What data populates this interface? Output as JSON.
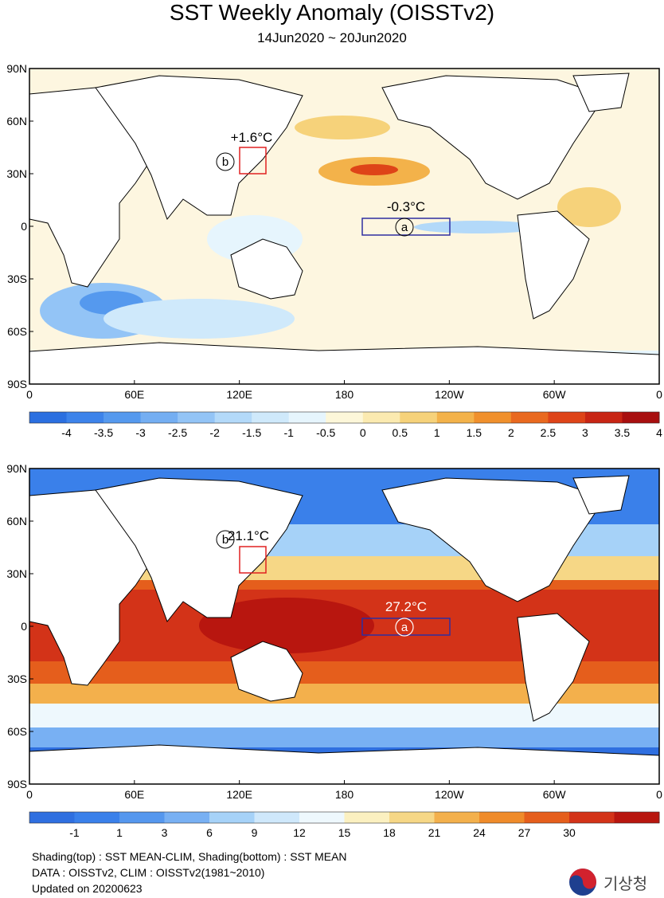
{
  "title": "SST Weekly Anomaly (OISSTv2)",
  "subtitle": "14Jun2020 ~ 20Jun2020",
  "axes": {
    "lat_labels": [
      "90N",
      "60N",
      "30N",
      "0",
      "30S",
      "60S",
      "90S"
    ],
    "lon_labels": [
      "0",
      "60E",
      "120E",
      "180",
      "120W",
      "60W",
      "0"
    ]
  },
  "top_map": {
    "name": "SST anomaly",
    "box_a": {
      "label": "a",
      "value": "-0.3°C"
    },
    "box_b": {
      "label": "b",
      "value": "+1.6°C"
    },
    "colorbar": {
      "ticks": [
        "-4",
        "-3.5",
        "-3",
        "-2.5",
        "-2",
        "-1.5",
        "-1",
        "-0.5",
        "0",
        "0.5",
        "1",
        "1.5",
        "2",
        "2.5",
        "3",
        "3.5",
        "4"
      ],
      "colors": [
        "#2b6fe0",
        "#3d83ea",
        "#5599ee",
        "#74aef2",
        "#93c4f6",
        "#b3d9f9",
        "#cfe9fb",
        "#e6f5fd",
        "#fdf7d9",
        "#fbeab0",
        "#f6d27a",
        "#f3b24a",
        "#f0902c",
        "#e9691f",
        "#de4418",
        "#c82514",
        "#a80f0f"
      ]
    }
  },
  "bottom_map": {
    "name": "SST mean",
    "box_a": {
      "label": "a",
      "value": "27.2°C"
    },
    "box_b": {
      "label": "b",
      "value": "21.1°C"
    },
    "colorbar": {
      "ticks": [
        "-1",
        "1",
        "3",
        "6",
        "9",
        "12",
        "15",
        "18",
        "21",
        "24",
        "27",
        "30"
      ],
      "colors": [
        "#2f6fe0",
        "#3a80ea",
        "#5597ee",
        "#78b0f3",
        "#a6d2f8",
        "#cfe8fb",
        "#eef8fd",
        "#fbf0c0",
        "#f6d786",
        "#f3b04c",
        "#ef8b2a",
        "#e55e1c",
        "#d33318",
        "#b8160f"
      ]
    }
  },
  "footer": {
    "line1": "Shading(top) : SST MEAN-CLIM, Shading(bottom) : SST MEAN",
    "line2": "DATA : OISSTv2, CLIM : OISSTv2(1981~2010)",
    "line3": "Updated on 20200623"
  },
  "logo_text": "기상청"
}
